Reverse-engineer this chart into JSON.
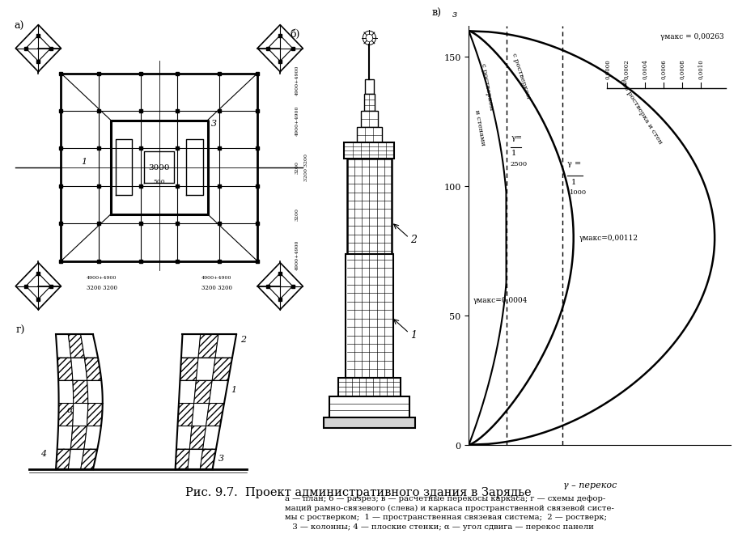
{
  "bg_color": "#ffffff",
  "title": "Рис. 9.7.  Проект административного здания в Зарядье",
  "caption": "а — план; б — разрез; в — расчетные перекосы каркаса; г — схемы дефор-\nмаций рамно-связевого (слева) и каркаса пространственной связевой систе-\nмы с ростверком;  1 — пространственная связевая система;  2 — ростверк;\n   3 — колонны; 4 — плоские стенки; α — угол сдвига — перекос панели",
  "gamma_max_1": 0.00263,
  "gamma_max_2": 0.00112,
  "gamma_max_3": 0.0004,
  "g_2500": 0.0004,
  "g_1000": 0.001
}
